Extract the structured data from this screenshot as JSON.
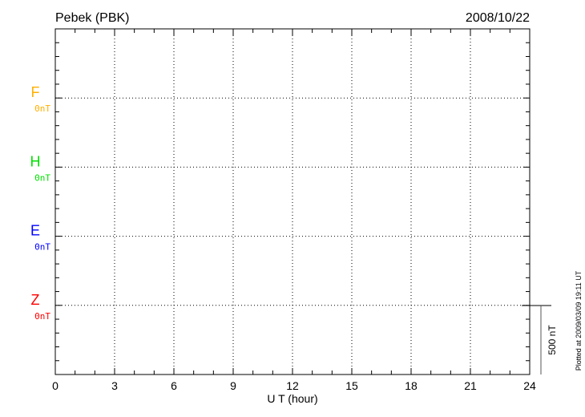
{
  "title": "Pebek (PBK)",
  "date": "2008/10/22",
  "plotted_note": "Plotted at 2009/03/09 19:11 UT",
  "chart_data": {
    "type": "line",
    "xlabel": "U T (hour)",
    "xlim": [
      0,
      24
    ],
    "xticks": [
      "0",
      "3",
      "6",
      "9",
      "12",
      "15",
      "18",
      "21",
      "24"
    ],
    "grid": true,
    "scale_bar_label": "500 nT",
    "series": [
      {
        "name": "F",
        "baseline_label": "0nT",
        "color": "#ffb000",
        "values": []
      },
      {
        "name": "H",
        "baseline_label": "0nT",
        "color": "#00e000",
        "values": []
      },
      {
        "name": "E",
        "baseline_label": "0nT",
        "color": "#0000ff",
        "values": []
      },
      {
        "name": "Z",
        "baseline_label": "0nT",
        "color": "#ff0000",
        "values": []
      }
    ]
  }
}
